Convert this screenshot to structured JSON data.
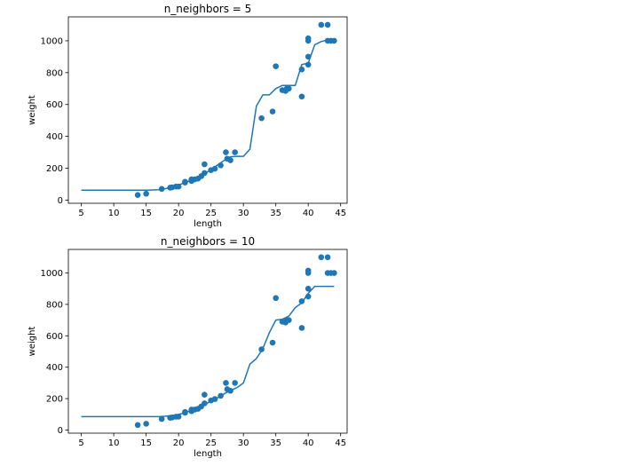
{
  "chart_data": [
    {
      "type": "scatter",
      "title": "n_neighbors = 5",
      "xlabel": "length",
      "ylabel": "weight",
      "xlim": [
        3,
        46
      ],
      "ylim": [
        -20,
        1150
      ],
      "xticks": [
        5,
        10,
        15,
        20,
        25,
        30,
        35,
        40,
        45
      ],
      "yticks": [
        0,
        200,
        400,
        600,
        800,
        1000
      ],
      "grid": false,
      "colors": {
        "points": "#1f77b4",
        "line": "#1f77b4"
      },
      "points": {
        "x": [
          13.7,
          15.0,
          17.4,
          18.7,
          19.0,
          19.6,
          20.0,
          21.0,
          21.0,
          22.0,
          22.0,
          22.0,
          22.5,
          23.0,
          23.5,
          24.0,
          24.0,
          25.0,
          25.6,
          26.5,
          27.3,
          27.5,
          28.0,
          28.7,
          32.8,
          34.5,
          35.0,
          36.0,
          36.5,
          36.7,
          37.0,
          39.0,
          39.0,
          40.0,
          40.0,
          40.0,
          40.0,
          42.0,
          43.0,
          43.0,
          43.5,
          44.0
        ],
        "y": [
          32,
          40,
          70,
          78,
          80,
          85,
          85,
          110,
          115,
          125,
          130,
          120,
          130,
          135,
          150,
          170,
          225,
          188,
          197,
          218,
          300,
          260,
          250,
          300,
          514,
          556,
          840,
          690,
          685,
          700,
          700,
          820,
          650,
          850,
          900,
          1015,
          1000,
          1100,
          1100,
          1000,
          1000,
          1000
        ]
      },
      "curve": {
        "x": [
          5,
          10,
          15,
          17,
          18,
          19,
          20,
          21,
          22,
          23,
          24,
          25,
          26,
          27,
          28,
          29,
          30,
          31,
          32,
          33,
          34,
          35,
          36,
          37,
          38,
          39,
          40,
          41,
          42,
          43,
          44
        ],
        "y": [
          62,
          62,
          62,
          65,
          72,
          80,
          95,
          110,
          125,
          145,
          165,
          190,
          220,
          248,
          272,
          275,
          275,
          320,
          590,
          660,
          660,
          700,
          720,
          720,
          720,
          850,
          860,
          975,
          995,
          1005,
          1005
        ]
      }
    },
    {
      "type": "scatter",
      "title": "n_neighbors = 10",
      "xlabel": "length",
      "ylabel": "weight",
      "xlim": [
        3,
        46
      ],
      "ylim": [
        -20,
        1150
      ],
      "xticks": [
        5,
        10,
        15,
        20,
        25,
        30,
        35,
        40,
        45
      ],
      "yticks": [
        0,
        200,
        400,
        600,
        800,
        1000
      ],
      "grid": false,
      "colors": {
        "points": "#1f77b4",
        "line": "#1f77b4"
      },
      "points": {
        "x": [
          13.7,
          15.0,
          17.4,
          18.7,
          19.0,
          19.6,
          20.0,
          21.0,
          21.0,
          22.0,
          22.0,
          22.0,
          22.5,
          23.0,
          23.5,
          24.0,
          24.0,
          25.0,
          25.6,
          26.5,
          27.3,
          27.5,
          28.0,
          28.7,
          32.8,
          34.5,
          35.0,
          36.0,
          36.5,
          36.7,
          37.0,
          39.0,
          39.0,
          40.0,
          40.0,
          40.0,
          40.0,
          42.0,
          43.0,
          43.0,
          43.5,
          44.0
        ],
        "y": [
          32,
          40,
          70,
          78,
          80,
          85,
          85,
          110,
          115,
          125,
          130,
          120,
          130,
          135,
          150,
          170,
          225,
          188,
          197,
          218,
          300,
          260,
          250,
          300,
          514,
          556,
          840,
          690,
          685,
          700,
          700,
          820,
          650,
          850,
          900,
          1015,
          1000,
          1100,
          1100,
          1000,
          1000,
          1000
        ]
      },
      "curve": {
        "x": [
          5,
          10,
          15,
          17,
          18,
          19,
          20,
          21,
          22,
          23,
          24,
          25,
          26,
          27,
          28,
          29,
          30,
          31,
          32,
          33,
          34,
          35,
          36,
          37,
          38,
          39,
          40,
          41,
          42,
          43,
          44
        ],
        "y": [
          85,
          85,
          85,
          85,
          88,
          92,
          100,
          110,
          125,
          140,
          160,
          185,
          205,
          230,
          252,
          270,
          300,
          420,
          455,
          520,
          620,
          700,
          705,
          725,
          780,
          810,
          870,
          915,
          915,
          915,
          915
        ]
      }
    }
  ]
}
